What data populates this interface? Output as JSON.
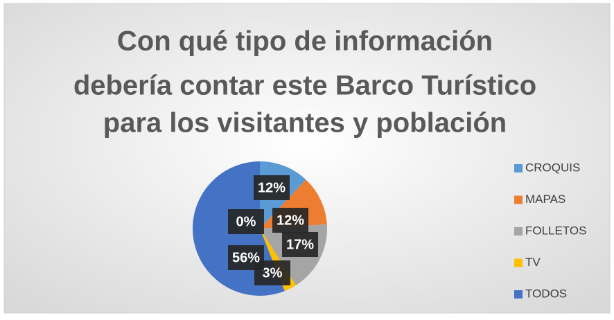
{
  "chart_data": {
    "type": "pie",
    "title": [
      "Con qué tipo de información",
      "debería contar este Barco Turístico",
      "para los visitantes y población"
    ],
    "categories": [
      "CROQUIS",
      "MAPAS",
      "FOLLETOS",
      "TV",
      "TODOS",
      null
    ],
    "values": [
      12,
      12,
      17,
      3,
      56,
      0
    ],
    "value_labels": [
      "12%",
      "12%",
      "17%",
      "3%",
      "56%",
      "0%"
    ],
    "colors": [
      "#5b9bd5",
      "#ed7d31",
      "#a5a5a5",
      "#ffc000",
      "#4472c4",
      "#70ad47"
    ],
    "legend": "right"
  }
}
